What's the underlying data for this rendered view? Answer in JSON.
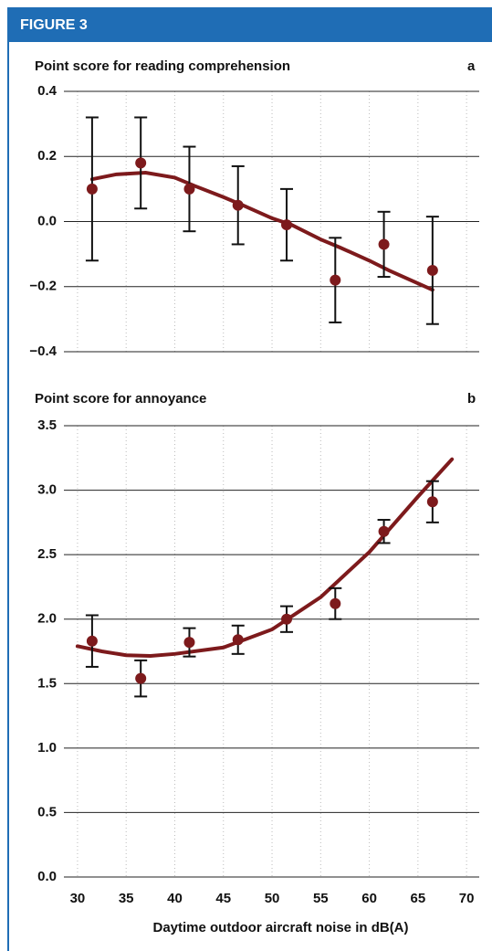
{
  "header": {
    "title": "FIGURE 3"
  },
  "chart_data": [
    {
      "type": "scatter",
      "title": "Point score for reading comprehension",
      "panel_label": "a",
      "xlim": [
        28.6,
        71.3
      ],
      "xticks": [
        30,
        35,
        40,
        45,
        50,
        55,
        60,
        65,
        70
      ],
      "ylim": [
        -0.4,
        0.4
      ],
      "yticks": [
        {
          "value": -0.4,
          "label": "−0.4"
        },
        {
          "value": -0.2,
          "label": "−0.2"
        },
        {
          "value": 0,
          "label": "0.0"
        },
        0.2,
        0.4
      ],
      "color": "#7d1a1c",
      "x": [
        31.5,
        36.5,
        41.5,
        46.5,
        51.5,
        56.5,
        61.5,
        66.5
      ],
      "values": [
        0.1,
        0.18,
        0.1,
        0.05,
        -0.01,
        -0.18,
        -0.07,
        -0.15
      ],
      "errors": [
        0.22,
        0.14,
        0.13,
        0.12,
        0.11,
        0.13,
        0.1,
        0.165
      ],
      "fit": {
        "x": [
          31.5,
          34,
          37,
          40,
          42,
          45,
          47,
          50,
          52,
          55,
          57,
          60,
          62,
          66.5
        ],
        "values": [
          0.13,
          0.145,
          0.15,
          0.135,
          0.11,
          0.075,
          0.05,
          0.01,
          -0.01,
          -0.055,
          -0.08,
          -0.12,
          -0.15,
          -0.21
        ]
      }
    },
    {
      "type": "scatter",
      "title": "Point score for annoyance",
      "panel_label": "b",
      "xlabel": "Daytime outdoor aircraft noise in dB(A)",
      "xlim": [
        28.6,
        71.3
      ],
      "xticks": [
        30,
        35,
        40,
        45,
        50,
        55,
        60,
        65,
        70
      ],
      "ylim": [
        0,
        3.5
      ],
      "yticks": [
        {
          "value": 0,
          "label": "0.0"
        },
        0.5,
        {
          "value": 1,
          "label": "1.0"
        },
        1.5,
        {
          "value": 2,
          "label": "2.0"
        },
        2.5,
        {
          "value": 3,
          "label": "3.0"
        },
        3.5
      ],
      "color": "#7d1a1c",
      "x": [
        31.5,
        36.5,
        41.5,
        46.5,
        51.5,
        56.5,
        61.5,
        66.5
      ],
      "values": [
        1.83,
        1.54,
        1.82,
        1.84,
        2.0,
        2.12,
        2.68,
        2.91
      ],
      "errors": [
        0.2,
        0.14,
        0.11,
        0.11,
        0.1,
        0.12,
        0.09,
        0.16
      ],
      "fit": {
        "x": [
          30,
          32.5,
          35,
          37.5,
          40,
          45,
          50,
          55,
          60,
          65,
          68.5
        ],
        "values": [
          1.79,
          1.75,
          1.72,
          1.715,
          1.73,
          1.78,
          1.92,
          2.17,
          2.52,
          2.95,
          3.24
        ]
      }
    }
  ]
}
